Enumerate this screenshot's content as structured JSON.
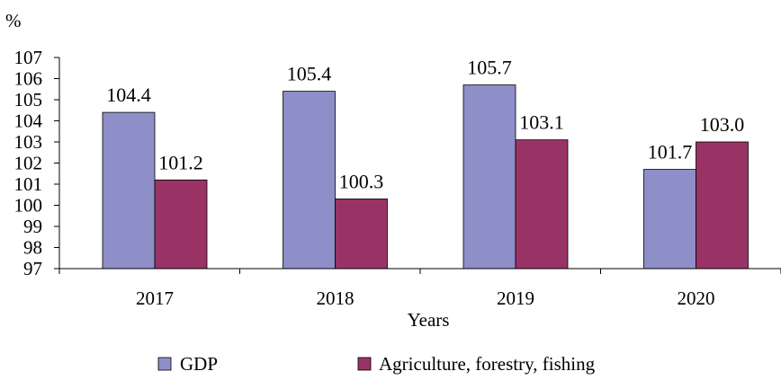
{
  "chart_data": {
    "type": "bar",
    "ylabel": "%",
    "xlabel": "Years",
    "categories": [
      "2017",
      "2018",
      "2019",
      "2020"
    ],
    "series": [
      {
        "name": "GDP",
        "color": "#8e8ec8",
        "values": [
          104.4,
          105.4,
          105.7,
          101.7
        ],
        "labels": [
          "104.4",
          "105.4",
          "105.7",
          "101.7"
        ]
      },
      {
        "name": "Agriculture, forestry, fishing",
        "color": "#993366",
        "values": [
          101.2,
          100.3,
          103.1,
          103.0
        ],
        "labels": [
          "101.2",
          "100.3",
          "103.1",
          "103.0"
        ]
      }
    ],
    "ylim": [
      97,
      107
    ],
    "yticks": [
      "97",
      "98",
      "99",
      "100",
      "101",
      "102",
      "103",
      "104",
      "105",
      "106",
      "107"
    ],
    "grid": false,
    "legend_position": "bottom"
  }
}
